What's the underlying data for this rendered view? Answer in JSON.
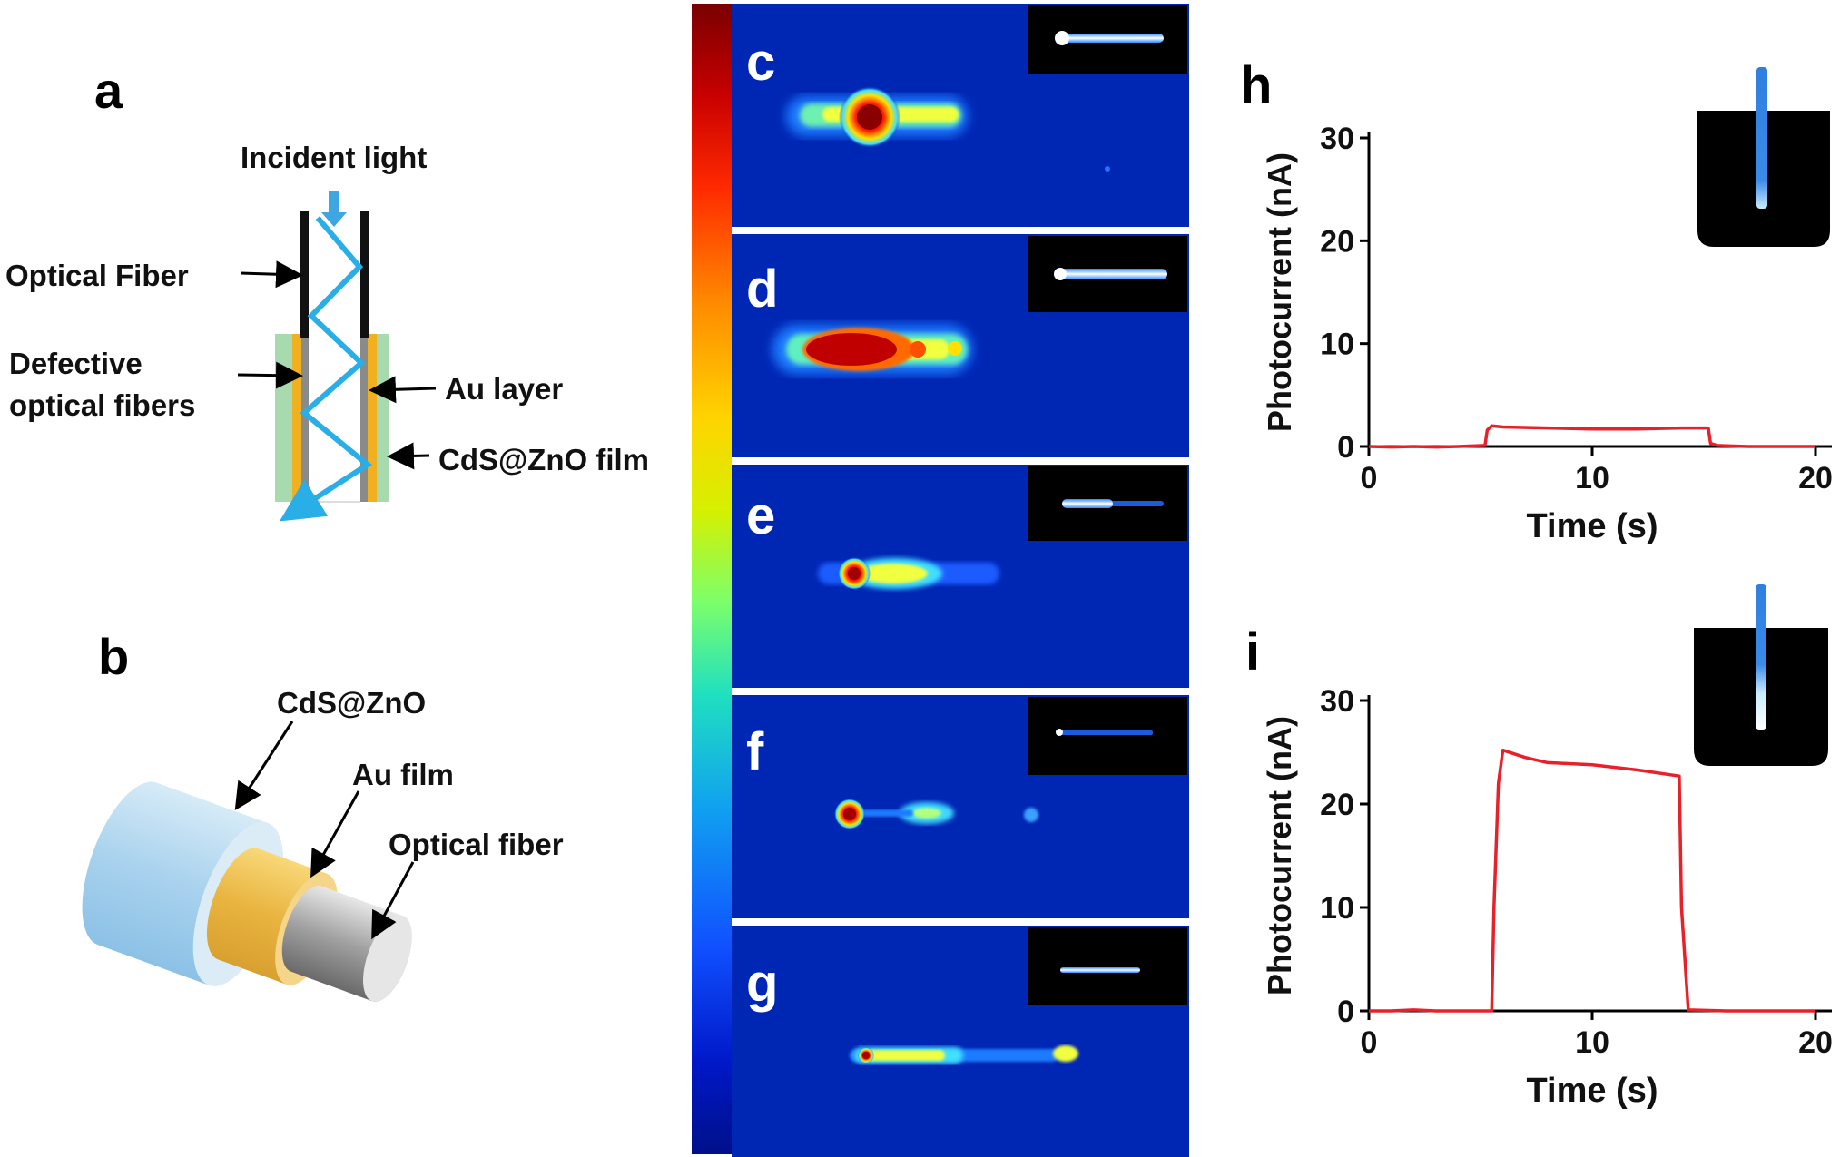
{
  "panel_a": {
    "letter": "a",
    "incident_light": "Incident light",
    "optical_fiber": "Optical Fiber",
    "defective_line1": "Defective",
    "defective_line2": "optical fibers",
    "au_layer": "Au layer",
    "film": "CdS@ZnO film"
  },
  "panel_b": {
    "letter": "b",
    "cds": "CdS@ZnO",
    "au_film": "Au film",
    "optical_fiber": "Optical fiber"
  },
  "heatmap_panels": [
    {
      "letter": "c"
    },
    {
      "letter": "d"
    },
    {
      "letter": "e"
    },
    {
      "letter": "f"
    },
    {
      "letter": "g"
    }
  ],
  "chart_data": [
    {
      "panel": "h",
      "type": "line",
      "xlabel": "Time (s)",
      "ylabel": "Photocurrent (nA)",
      "xlim": [
        0,
        20
      ],
      "ylim": [
        0,
        30
      ],
      "xticks": [
        "0",
        "10",
        "20"
      ],
      "yticks": [
        "0",
        "10",
        "20",
        "30"
      ],
      "series": [
        {
          "name": "photocurrent",
          "color": "#e8202a",
          "x": [
            0,
            1,
            2,
            3,
            4,
            5.2,
            5.3,
            5.5,
            6,
            8,
            10,
            12,
            14,
            15.2,
            15.3,
            15.6,
            17,
            20
          ],
          "y": [
            0,
            -0.05,
            0,
            -0.05,
            0,
            0.1,
            1.6,
            2.0,
            1.9,
            1.8,
            1.7,
            1.7,
            1.8,
            1.8,
            0.3,
            0.1,
            0,
            0
          ]
        }
      ]
    },
    {
      "panel": "i",
      "type": "line",
      "xlabel": "Time (s)",
      "ylabel": "Photocurrent (nA)",
      "xlim": [
        0,
        20
      ],
      "ylim": [
        0,
        30
      ],
      "xticks": [
        "0",
        "10",
        "20"
      ],
      "yticks": [
        "0",
        "10",
        "20",
        "30"
      ],
      "series": [
        {
          "name": "photocurrent",
          "color": "#e8202a",
          "x": [
            0,
            1,
            2,
            3,
            4,
            5.5,
            5.6,
            5.8,
            6,
            7,
            8,
            10,
            12,
            13.9,
            14.0,
            14.3,
            16,
            18,
            20
          ],
          "y": [
            0,
            0,
            0.1,
            0,
            0,
            0,
            10,
            22,
            25.2,
            24.5,
            24.0,
            23.8,
            23.3,
            22.7,
            10,
            0.1,
            0,
            0,
            0
          ]
        }
      ]
    }
  ],
  "colors": {
    "ray": "#2aaee8",
    "gold": "#f0b020",
    "film": "#a8dab0",
    "trace": "#e8202a",
    "heat_bg": "#0026b4"
  }
}
